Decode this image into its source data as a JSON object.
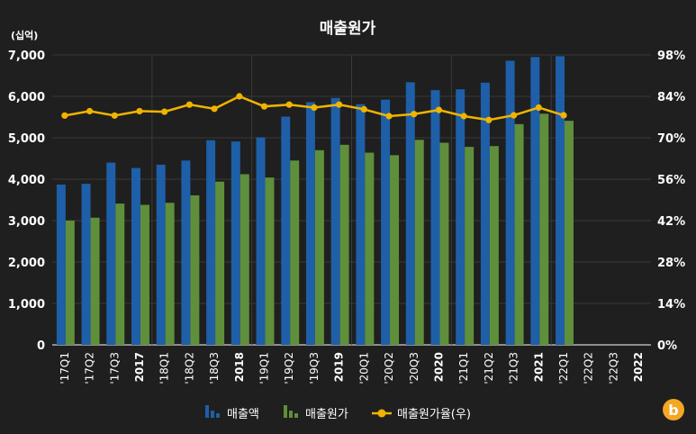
{
  "chart_data": {
    "type": "bar",
    "title": "매출원가",
    "unit_label": "(십억)",
    "categories": [
      "'17Q1",
      "'17Q2",
      "'17Q3",
      "2017",
      "'18Q1",
      "'18Q2",
      "'18Q3",
      "2018",
      "'19Q1",
      "'19Q2",
      "'19Q3",
      "2019",
      "'20Q1",
      "'20Q2",
      "'20Q3",
      "2020",
      "'21Q1",
      "'21Q2",
      "'21Q3",
      "2021",
      "'22Q1",
      "'22Q2",
      "'22Q3",
      "2022"
    ],
    "bold_categories": [
      "2017",
      "2018",
      "2019",
      "2020",
      "2021",
      "2022"
    ],
    "ylim_left": [
      0,
      7000
    ],
    "yticks_left": [
      "0",
      "1,000",
      "2,000",
      "3,000",
      "4,000",
      "5,000",
      "6,000",
      "7,000"
    ],
    "ylim_right": [
      0,
      98
    ],
    "yticks_right": [
      "0%",
      "14%",
      "28%",
      "42%",
      "56%",
      "70%",
      "84%",
      "98%"
    ],
    "series": [
      {
        "name": "매출액",
        "kind": "bar",
        "color": "#1e5fa8",
        "values": [
          3870,
          3890,
          4400,
          4270,
          4350,
          4450,
          4940,
          4910,
          5010,
          5510,
          5860,
          5960,
          5810,
          5920,
          6340,
          6150,
          6170,
          6330,
          6860,
          6950,
          6970,
          null,
          null,
          null
        ]
      },
      {
        "name": "매출원가",
        "kind": "bar",
        "color": "#5f8f3a",
        "values": [
          3000,
          3070,
          3410,
          3380,
          3430,
          3610,
          3940,
          4120,
          4040,
          4450,
          4700,
          4830,
          4640,
          4580,
          4950,
          4880,
          4780,
          4800,
          5330,
          5580,
          5410,
          null,
          null,
          null
        ]
      },
      {
        "name": "매출원가율(우)",
        "kind": "line",
        "color": "#f0b400",
        "values": [
          77.5,
          79,
          77.5,
          79,
          78.8,
          81.2,
          79.8,
          84,
          80.6,
          81.2,
          80.2,
          81.2,
          79.6,
          77.3,
          78,
          79.4,
          77.3,
          76,
          77.6,
          80.2,
          77.6,
          null,
          null,
          null
        ]
      }
    ],
    "legend_position": "bottom"
  },
  "brand_badge_letter": "b",
  "brand_color": "#f5a623"
}
